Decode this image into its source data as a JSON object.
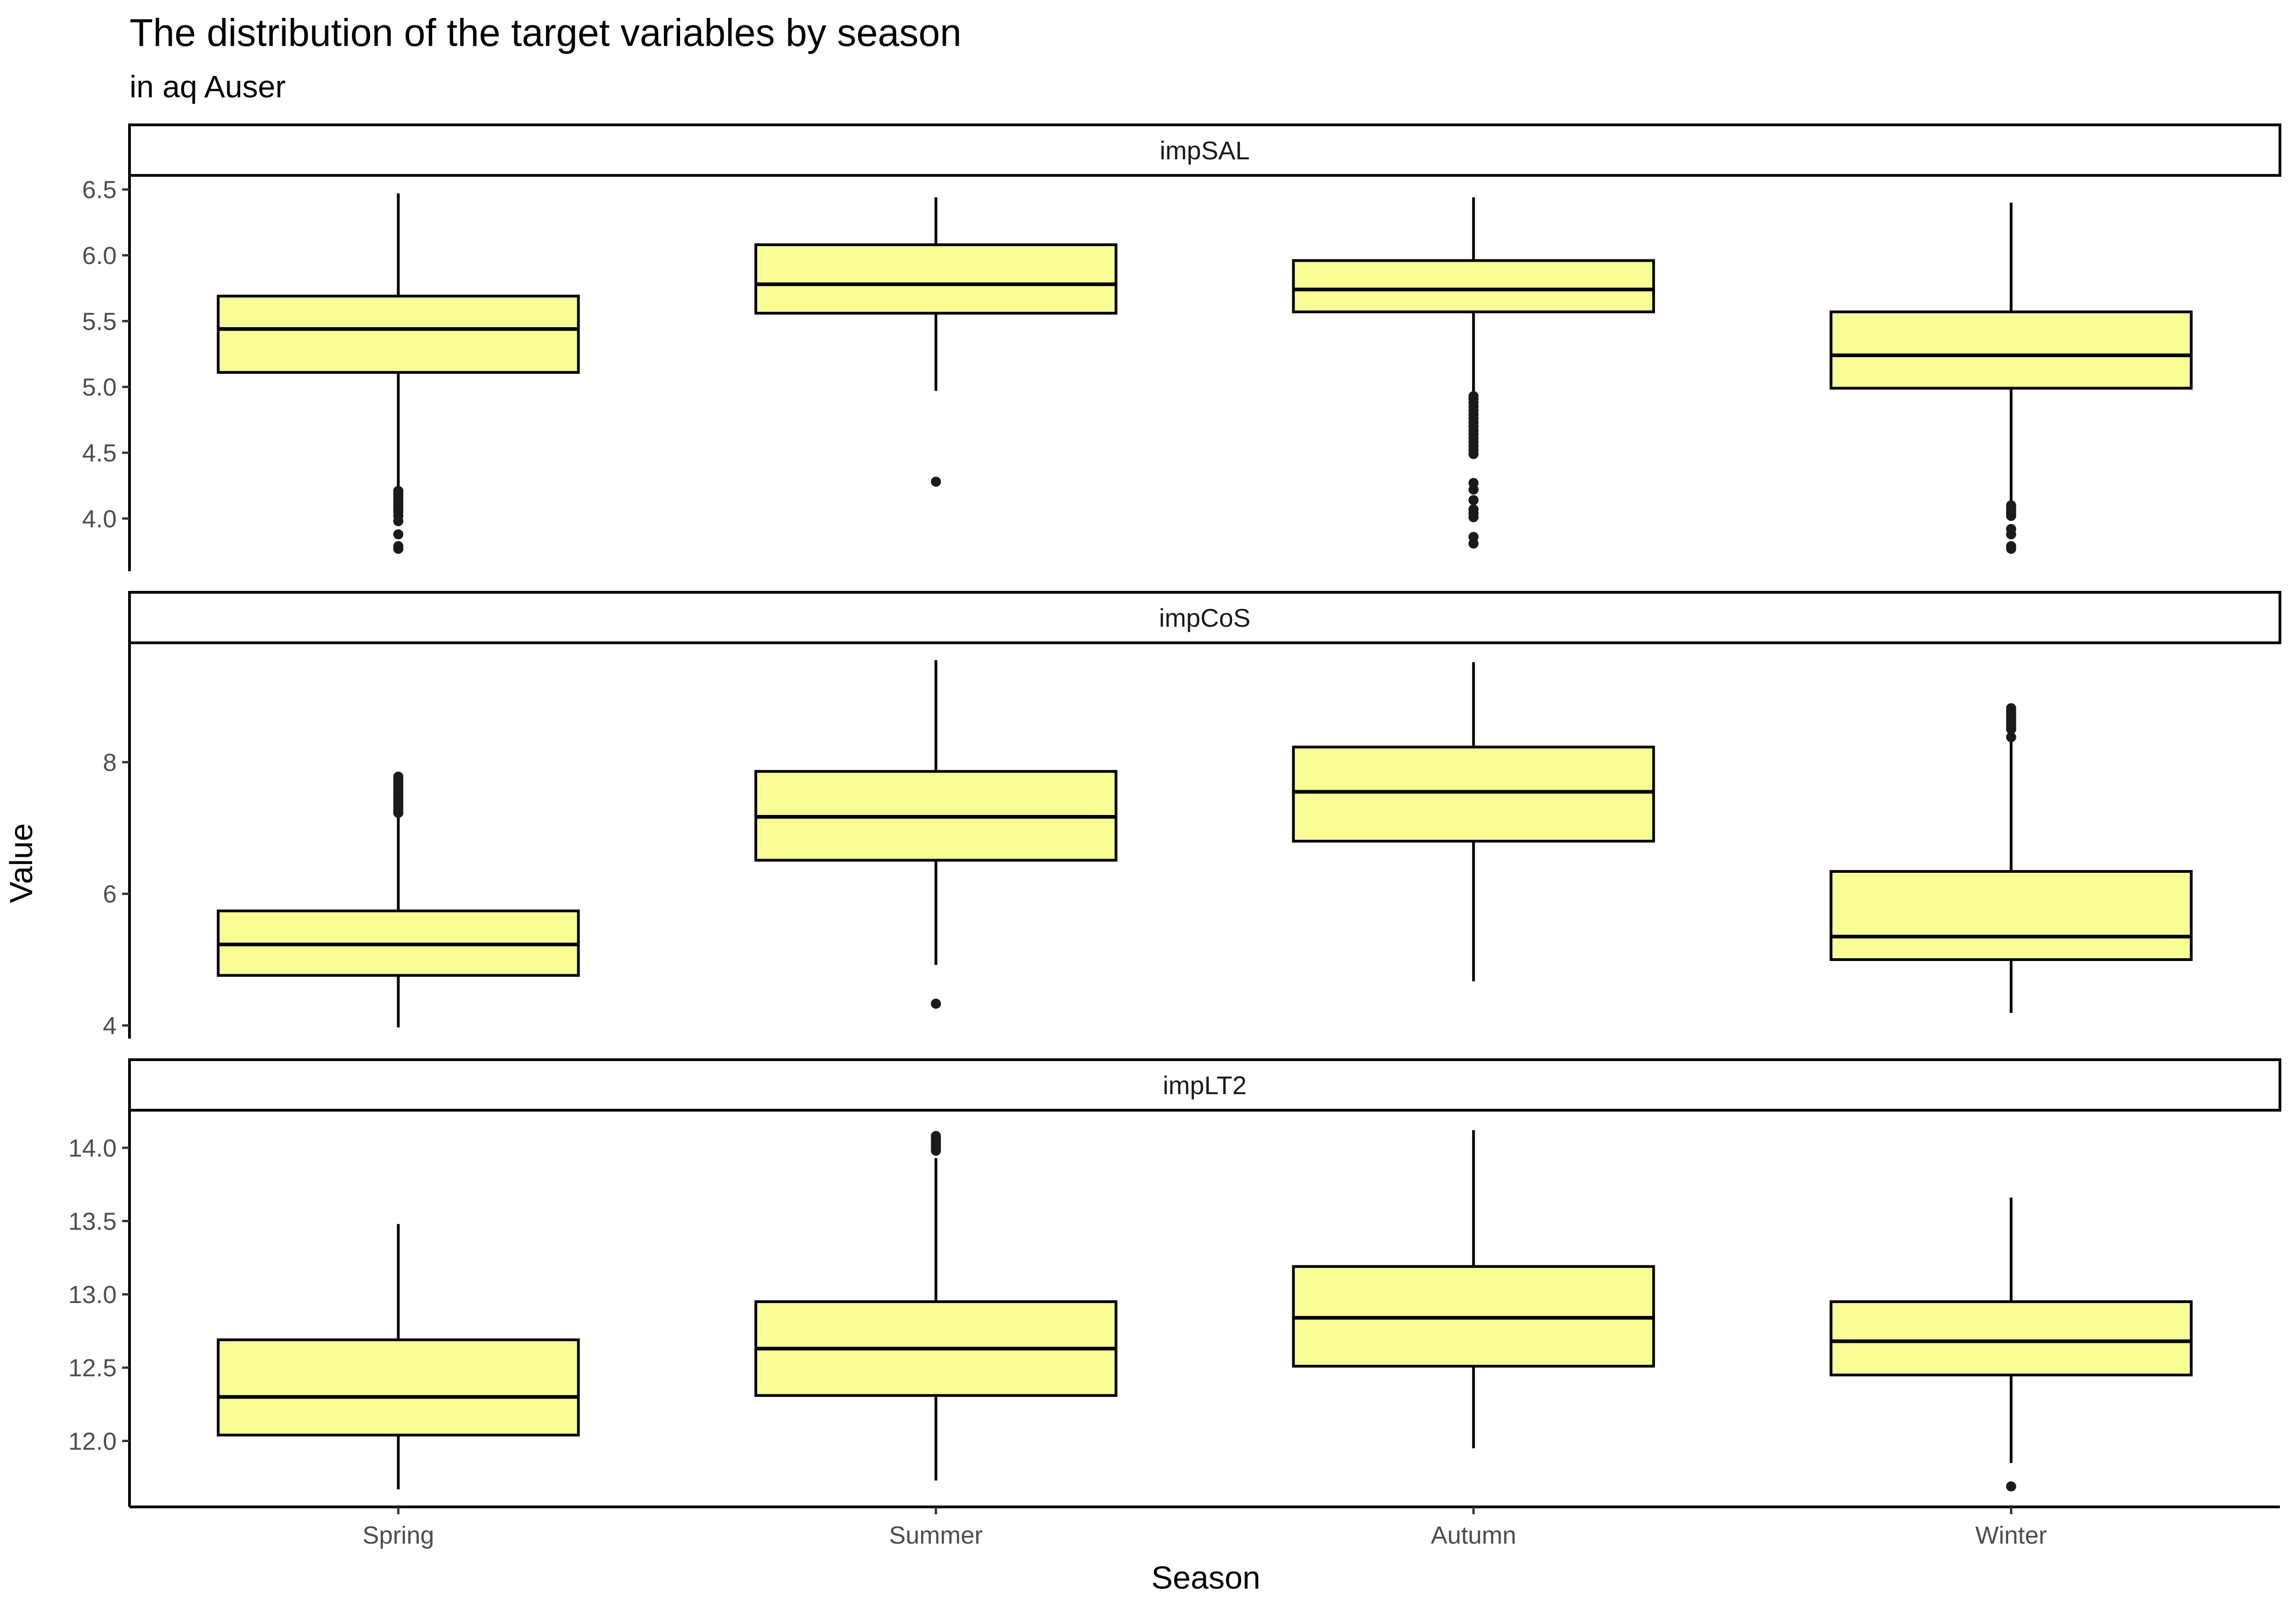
{
  "chart_data": {
    "type": "boxplot",
    "title": "The distribution of the target variables by season",
    "subtitle": "in aq Auser",
    "xlabel": "Season",
    "ylabel": "Value",
    "categories": [
      "Spring",
      "Summer",
      "Autumn",
      "Winter"
    ],
    "box_fill": "#F8FD96",
    "grid": false,
    "panels": [
      {
        "name": "impSAL",
        "ylim": [
          3.6,
          6.6
        ],
        "yticks": [
          4.0,
          4.5,
          5.0,
          5.5,
          6.0,
          6.5
        ],
        "tick_labels": [
          "4.0",
          "4.5",
          "5.0",
          "5.5",
          "6.0",
          "6.5"
        ],
        "boxes": [
          {
            "category": "Spring",
            "lower_whisker": 4.23,
            "q1": 5.11,
            "median": 5.44,
            "q3": 5.69,
            "upper_whisker": 6.47,
            "outliers": [
              4.21,
              4.19,
              4.17,
              4.15,
              4.13,
              4.11,
              4.09,
              4.07,
              4.05,
              4.02,
              3.98,
              3.88,
              3.79,
              3.77
            ]
          },
          {
            "category": "Summer",
            "lower_whisker": 4.97,
            "q1": 5.56,
            "median": 5.78,
            "q3": 6.08,
            "upper_whisker": 6.44,
            "outliers": [
              4.28
            ]
          },
          {
            "category": "Autumn",
            "lower_whisker": 4.95,
            "q1": 5.57,
            "median": 5.74,
            "q3": 5.96,
            "upper_whisker": 6.44,
            "outliers": [
              4.93,
              4.91,
              4.88,
              4.85,
              4.82,
              4.79,
              4.76,
              4.73,
              4.7,
              4.67,
              4.64,
              4.61,
              4.58,
              4.55,
              4.52,
              4.49,
              4.27,
              4.22,
              4.14,
              4.07,
              4.04,
              4.01,
              3.86,
              3.81
            ]
          },
          {
            "category": "Winter",
            "lower_whisker": 4.13,
            "q1": 4.99,
            "median": 5.24,
            "q3": 5.57,
            "upper_whisker": 6.4,
            "outliers": [
              4.1,
              4.08,
              4.06,
              4.04,
              4.02,
              3.92,
              3.88,
              3.79,
              3.77
            ]
          }
        ]
      },
      {
        "name": "impCoS",
        "ylim": [
          3.8,
          9.8
        ],
        "yticks": [
          4,
          6,
          8
        ],
        "tick_labels": [
          "4",
          "6",
          "8"
        ],
        "boxes": [
          {
            "category": "Spring",
            "lower_whisker": 3.97,
            "q1": 4.76,
            "median": 5.23,
            "q3": 5.74,
            "upper_whisker": 7.2,
            "outliers": [
              7.78,
              7.74,
              7.7,
              7.66,
              7.62,
              7.58,
              7.54,
              7.5,
              7.46,
              7.42,
              7.38,
              7.34,
              7.3,
              7.26,
              7.23
            ]
          },
          {
            "category": "Summer",
            "lower_whisker": 4.92,
            "q1": 6.51,
            "median": 7.17,
            "q3": 7.86,
            "upper_whisker": 9.55,
            "outliers": [
              4.33
            ]
          },
          {
            "category": "Autumn",
            "lower_whisker": 4.67,
            "q1": 6.8,
            "median": 7.55,
            "q3": 8.23,
            "upper_whisker": 9.52,
            "outliers": []
          },
          {
            "category": "Winter",
            "lower_whisker": 4.19,
            "q1": 5.0,
            "median": 5.35,
            "q3": 6.34,
            "upper_whisker": 8.35,
            "outliers": [
              8.82,
              8.78,
              8.74,
              8.7,
              8.66,
              8.62,
              8.58,
              8.54,
              8.5,
              8.38
            ]
          }
        ]
      },
      {
        "name": "impLT2",
        "ylim": [
          11.55,
          14.25
        ],
        "yticks": [
          12.0,
          12.5,
          13.0,
          13.5,
          14.0
        ],
        "tick_labels": [
          "12.0",
          "12.5",
          "13.0",
          "13.5",
          "14.0"
        ],
        "boxes": [
          {
            "category": "Spring",
            "lower_whisker": 11.67,
            "q1": 12.04,
            "median": 12.3,
            "q3": 12.69,
            "upper_whisker": 13.48,
            "outliers": []
          },
          {
            "category": "Summer",
            "lower_whisker": 11.73,
            "q1": 12.31,
            "median": 12.63,
            "q3": 12.95,
            "upper_whisker": 13.93,
            "outliers": [
              14.08,
              14.06,
              14.04,
              14.02,
              14.0,
              13.98
            ]
          },
          {
            "category": "Autumn",
            "lower_whisker": 11.95,
            "q1": 12.51,
            "median": 12.84,
            "q3": 13.19,
            "upper_whisker": 14.12,
            "outliers": []
          },
          {
            "category": "Winter",
            "lower_whisker": 11.85,
            "q1": 12.45,
            "median": 12.68,
            "q3": 12.95,
            "upper_whisker": 13.66,
            "outliers": [
              11.69
            ]
          }
        ]
      }
    ]
  }
}
